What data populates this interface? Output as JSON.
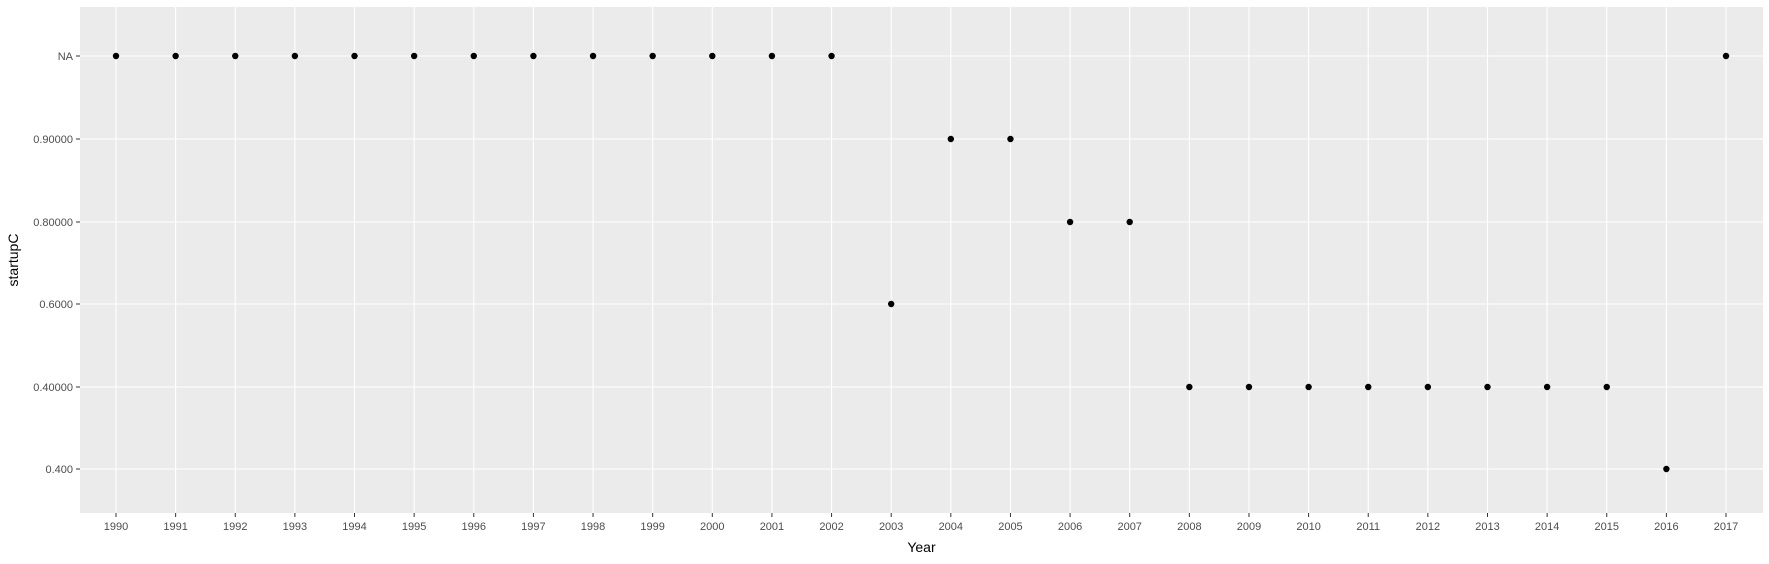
{
  "chart_data": {
    "type": "scatter",
    "title": "",
    "xlabel": "Year",
    "ylabel": "startupC",
    "x_axis_kind": "discrete",
    "y_axis_kind": "discrete",
    "categories_x": [
      "1990",
      "1991",
      "1992",
      "1993",
      "1994",
      "1995",
      "1996",
      "1997",
      "1998",
      "1999",
      "2000",
      "2001",
      "2002",
      "2003",
      "2004",
      "2005",
      "2006",
      "2007",
      "2008",
      "2009",
      "2010",
      "2011",
      "2012",
      "2013",
      "2014",
      "2015",
      "2016",
      "2017"
    ],
    "categories_y": [
      "0.400",
      "0.40000",
      "0.6000",
      "0.80000",
      "0.90000",
      "NA"
    ],
    "points": [
      {
        "x": "1990",
        "y": "NA"
      },
      {
        "x": "1991",
        "y": "NA"
      },
      {
        "x": "1992",
        "y": "NA"
      },
      {
        "x": "1993",
        "y": "NA"
      },
      {
        "x": "1994",
        "y": "NA"
      },
      {
        "x": "1995",
        "y": "NA"
      },
      {
        "x": "1996",
        "y": "NA"
      },
      {
        "x": "1997",
        "y": "NA"
      },
      {
        "x": "1998",
        "y": "NA"
      },
      {
        "x": "1999",
        "y": "NA"
      },
      {
        "x": "2000",
        "y": "NA"
      },
      {
        "x": "2001",
        "y": "NA"
      },
      {
        "x": "2002",
        "y": "NA"
      },
      {
        "x": "2003",
        "y": "0.6000"
      },
      {
        "x": "2004",
        "y": "0.90000"
      },
      {
        "x": "2005",
        "y": "0.90000"
      },
      {
        "x": "2006",
        "y": "0.80000"
      },
      {
        "x": "2007",
        "y": "0.80000"
      },
      {
        "x": "2008",
        "y": "0.40000"
      },
      {
        "x": "2009",
        "y": "0.40000"
      },
      {
        "x": "2010",
        "y": "0.40000"
      },
      {
        "x": "2011",
        "y": "0.40000"
      },
      {
        "x": "2012",
        "y": "0.40000"
      },
      {
        "x": "2013",
        "y": "0.40000"
      },
      {
        "x": "2014",
        "y": "0.40000"
      },
      {
        "x": "2015",
        "y": "0.40000"
      },
      {
        "x": "2016",
        "y": "0.400"
      },
      {
        "x": "2017",
        "y": "NA"
      }
    ],
    "grid": true,
    "legend": "none",
    "colors": {
      "panel_background": "#ebebeb",
      "grid_line": "#ffffff",
      "point": "#000000",
      "tick_label": "#4d4d4d",
      "tick_mark": "#333333",
      "axis_title": "#000000"
    }
  }
}
